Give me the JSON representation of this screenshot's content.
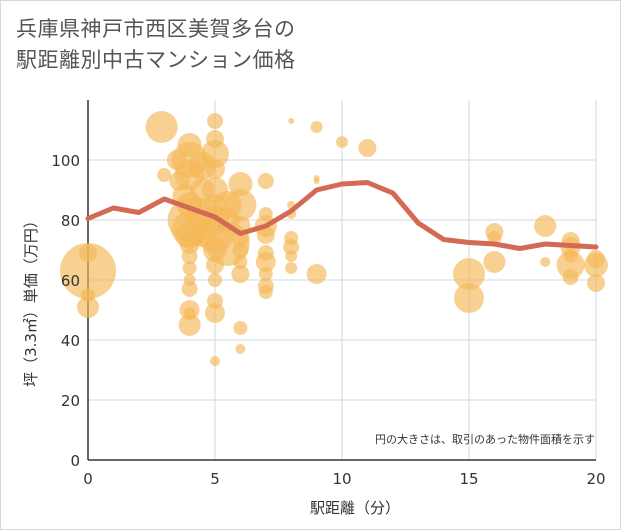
{
  "title_lines": [
    "兵庫県神戸市西区美賀多台の",
    "駅距離別中古マンション価格"
  ],
  "chart_data": {
    "type": "scatter",
    "title": "兵庫県神戸市西区美賀多台の駅距離別中古マンション価格",
    "xlabel": "駅距離（分）",
    "ylabel": "坪（3.3㎡）単価（万円）",
    "xlim": [
      0,
      20
    ],
    "ylim": [
      0,
      120
    ],
    "x_ticks": [
      0,
      5,
      10,
      15,
      20
    ],
    "y_ticks": [
      0,
      20,
      40,
      60,
      80,
      100
    ],
    "grid": true,
    "note": "円の大きさは、取引のあった物件面積を示す",
    "colors": {
      "bubble": "#f5b858",
      "line": "#d46a54",
      "grid": "#cfd8e0",
      "axis": "#333333"
    },
    "bubbles": [
      {
        "x": 0,
        "y": 63,
        "r": 28
      },
      {
        "x": 0,
        "y": 69,
        "r": 9
      },
      {
        "x": 0,
        "y": 51,
        "r": 11
      },
      {
        "x": 0,
        "y": 55,
        "r": 7
      },
      {
        "x": 2.9,
        "y": 111,
        "r": 16
      },
      {
        "x": 3,
        "y": 95,
        "r": 7
      },
      {
        "x": 3.5,
        "y": 100,
        "r": 10
      },
      {
        "x": 3.6,
        "y": 93,
        "r": 10
      },
      {
        "x": 3.8,
        "y": 88,
        "r": 12
      },
      {
        "x": 4,
        "y": 105,
        "r": 12
      },
      {
        "x": 4,
        "y": 100,
        "r": 18
      },
      {
        "x": 4,
        "y": 95,
        "r": 15
      },
      {
        "x": 4,
        "y": 85,
        "r": 13
      },
      {
        "x": 4,
        "y": 80,
        "r": 22
      },
      {
        "x": 4,
        "y": 77,
        "r": 18
      },
      {
        "x": 4,
        "y": 75,
        "r": 14
      },
      {
        "x": 4,
        "y": 72,
        "r": 10
      },
      {
        "x": 4,
        "y": 68,
        "r": 8
      },
      {
        "x": 4,
        "y": 64,
        "r": 7
      },
      {
        "x": 4,
        "y": 60,
        "r": 6
      },
      {
        "x": 4,
        "y": 57,
        "r": 8
      },
      {
        "x": 4,
        "y": 50,
        "r": 10
      },
      {
        "x": 4,
        "y": 45,
        "r": 11
      },
      {
        "x": 4,
        "y": 49,
        "r": 6
      },
      {
        "x": 4.5,
        "y": 98,
        "r": 14
      },
      {
        "x": 4.5,
        "y": 90,
        "r": 12
      },
      {
        "x": 4.5,
        "y": 82,
        "r": 16
      },
      {
        "x": 4.5,
        "y": 75,
        "r": 12
      },
      {
        "x": 5,
        "y": 113,
        "r": 8
      },
      {
        "x": 5,
        "y": 107,
        "r": 9
      },
      {
        "x": 5,
        "y": 102,
        "r": 14
      },
      {
        "x": 5,
        "y": 97,
        "r": 10
      },
      {
        "x": 5,
        "y": 90,
        "r": 13
      },
      {
        "x": 5,
        "y": 85,
        "r": 11
      },
      {
        "x": 5,
        "y": 80,
        "r": 14
      },
      {
        "x": 5,
        "y": 75,
        "r": 18
      },
      {
        "x": 5,
        "y": 70,
        "r": 12
      },
      {
        "x": 5,
        "y": 65,
        "r": 9
      },
      {
        "x": 5,
        "y": 60,
        "r": 7
      },
      {
        "x": 5,
        "y": 53,
        "r": 8
      },
      {
        "x": 5,
        "y": 49,
        "r": 10
      },
      {
        "x": 5,
        "y": 33,
        "r": 5
      },
      {
        "x": 5.5,
        "y": 85,
        "r": 14
      },
      {
        "x": 5.5,
        "y": 72,
        "r": 22
      },
      {
        "x": 5.5,
        "y": 80,
        "r": 12
      },
      {
        "x": 6,
        "y": 92,
        "r": 12
      },
      {
        "x": 6,
        "y": 85,
        "r": 16
      },
      {
        "x": 6,
        "y": 78,
        "r": 10
      },
      {
        "x": 6,
        "y": 74,
        "r": 9
      },
      {
        "x": 6,
        "y": 70,
        "r": 8
      },
      {
        "x": 6,
        "y": 66,
        "r": 7
      },
      {
        "x": 6,
        "y": 62,
        "r": 9
      },
      {
        "x": 6,
        "y": 44,
        "r": 7
      },
      {
        "x": 6,
        "y": 37,
        "r": 5
      },
      {
        "x": 7,
        "y": 93,
        "r": 8
      },
      {
        "x": 7,
        "y": 82,
        "r": 7
      },
      {
        "x": 7,
        "y": 78,
        "r": 11
      },
      {
        "x": 7,
        "y": 75,
        "r": 9
      },
      {
        "x": 7,
        "y": 69,
        "r": 8
      },
      {
        "x": 7,
        "y": 66,
        "r": 10
      },
      {
        "x": 7,
        "y": 62,
        "r": 7
      },
      {
        "x": 7,
        "y": 58,
        "r": 8
      },
      {
        "x": 7,
        "y": 56,
        "r": 7
      },
      {
        "x": 8,
        "y": 113,
        "r": 3
      },
      {
        "x": 8,
        "y": 85,
        "r": 4
      },
      {
        "x": 8,
        "y": 82,
        "r": 5
      },
      {
        "x": 8,
        "y": 74,
        "r": 7
      },
      {
        "x": 8,
        "y": 71,
        "r": 8
      },
      {
        "x": 8,
        "y": 68,
        "r": 6
      },
      {
        "x": 8,
        "y": 64,
        "r": 6
      },
      {
        "x": 9,
        "y": 111,
        "r": 6
      },
      {
        "x": 9,
        "y": 94,
        "r": 3
      },
      {
        "x": 9,
        "y": 93,
        "r": 3
      },
      {
        "x": 9,
        "y": 62,
        "r": 10
      },
      {
        "x": 10,
        "y": 106,
        "r": 6
      },
      {
        "x": 11,
        "y": 104,
        "r": 9
      },
      {
        "x": 15,
        "y": 62,
        "r": 16
      },
      {
        "x": 15,
        "y": 54,
        "r": 15
      },
      {
        "x": 16,
        "y": 76,
        "r": 9
      },
      {
        "x": 16,
        "y": 74,
        "r": 7
      },
      {
        "x": 16,
        "y": 66,
        "r": 11
      },
      {
        "x": 18,
        "y": 78,
        "r": 11
      },
      {
        "x": 18,
        "y": 66,
        "r": 5
      },
      {
        "x": 19,
        "y": 73,
        "r": 9
      },
      {
        "x": 19,
        "y": 71,
        "r": 10
      },
      {
        "x": 19,
        "y": 68,
        "r": 7
      },
      {
        "x": 19,
        "y": 65,
        "r": 14
      },
      {
        "x": 19,
        "y": 61,
        "r": 8
      },
      {
        "x": 20,
        "y": 67,
        "r": 9
      },
      {
        "x": 20,
        "y": 65,
        "r": 12
      },
      {
        "x": 20,
        "y": 59,
        "r": 9
      }
    ],
    "average_line": {
      "x": [
        0,
        1,
        2,
        3,
        4,
        5,
        6,
        7,
        8,
        9,
        10,
        11,
        12,
        13,
        14,
        15,
        16,
        17,
        18,
        19,
        20
      ],
      "y": [
        80.5,
        84,
        82.5,
        87,
        84,
        81,
        75.5,
        78,
        83,
        90,
        92,
        92.5,
        89,
        79,
        73.5,
        72.5,
        72,
        70.5,
        72,
        71.5,
        71
      ]
    }
  }
}
